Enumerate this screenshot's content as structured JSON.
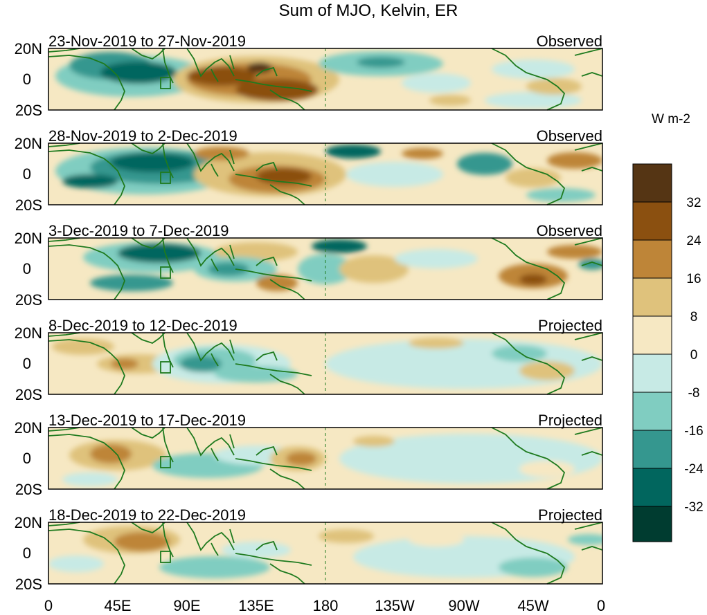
{
  "title": "Sum of MJO, Kelvin, ER",
  "colorbar": {
    "units": "W m-2",
    "tick_labels": [
      "32",
      "24",
      "16",
      "8",
      "0",
      "-8",
      "-16",
      "-24",
      "-32"
    ],
    "colors_top_to_bottom": [
      "#553514",
      "#8b5010",
      "#be8538",
      "#dfc27c",
      "#f6e8c3",
      "#c7eae5",
      "#80cdc1",
      "#35978f",
      "#01665e",
      "#003c30"
    ]
  },
  "lat_labels": [
    "20N",
    "0",
    "20S"
  ],
  "lon_labels": [
    "0",
    "45E",
    "90E",
    "135E",
    "180",
    "135W",
    "90W",
    "45W",
    "0"
  ],
  "panels": [
    {
      "dates": "23-Nov-2019 to 27-Nov-2019",
      "type": "Observed"
    },
    {
      "dates": "28-Nov-2019 to 2-Dec-2019",
      "type": "Observed"
    },
    {
      "dates": "3-Dec-2019 to 7-Dec-2019",
      "type": "Observed"
    },
    {
      "dates": "8-Dec-2019 to 12-Dec-2019",
      "type": "Projected"
    },
    {
      "dates": "13-Dec-2019 to 17-Dec-2019",
      "type": "Projected"
    },
    {
      "dates": "18-Dec-2019 to 22-Dec-2019",
      "type": "Projected"
    }
  ],
  "colors": {
    "coastline": "#1e7a1e",
    "dateline": "#1e7a1e",
    "frame": "#000000",
    "background": "#f6e8c3"
  }
}
